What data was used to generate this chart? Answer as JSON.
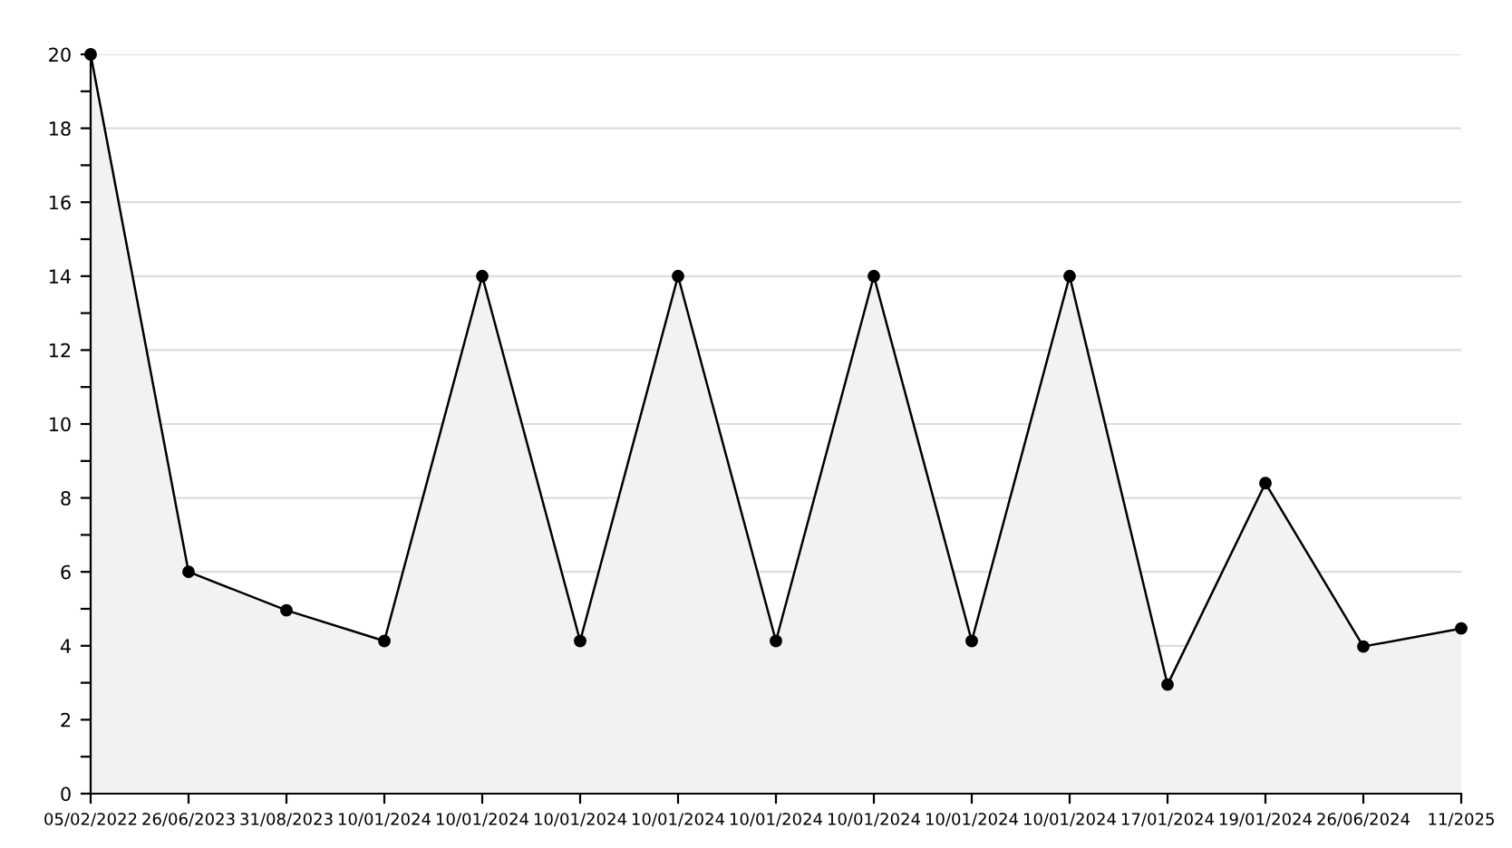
{
  "chart_data": {
    "type": "area",
    "categories": [
      "05/02/2022",
      "26/06/2023",
      "31/08/2023",
      "10/01/2024",
      "10/01/2024",
      "10/01/2024",
      "10/01/2024",
      "10/01/2024",
      "10/01/2024",
      "10/01/2024",
      "10/01/2024",
      "17/01/2024",
      "19/01/2024",
      "26/06/2024",
      "11/2025"
    ],
    "series": [
      {
        "color": "#000000",
        "values": [
          20,
          6,
          4.96,
          4.13,
          14,
          4.13,
          14,
          4.13,
          14,
          4.13,
          14,
          2.95,
          8.4,
          3.98,
          4.47
        ]
      }
    ],
    "ylim": [
      0,
      20
    ],
    "yticks": [
      0,
      {
        "value": 1,
        "label": null
      },
      2,
      {
        "value": 3,
        "label": null
      },
      4,
      {
        "value": 5,
        "label": null
      },
      6,
      {
        "value": 7,
        "label": null
      },
      8,
      {
        "value": 9,
        "label": null
      },
      10,
      {
        "value": 11,
        "label": null
      },
      12,
      {
        "value": 13,
        "label": null
      },
      14,
      {
        "value": 15,
        "label": null
      },
      16,
      {
        "value": 17,
        "label": null
      },
      18,
      {
        "value": 19,
        "label": null
      },
      20
    ],
    "grid": "y",
    "marker": "circle",
    "line_style": "solid"
  }
}
